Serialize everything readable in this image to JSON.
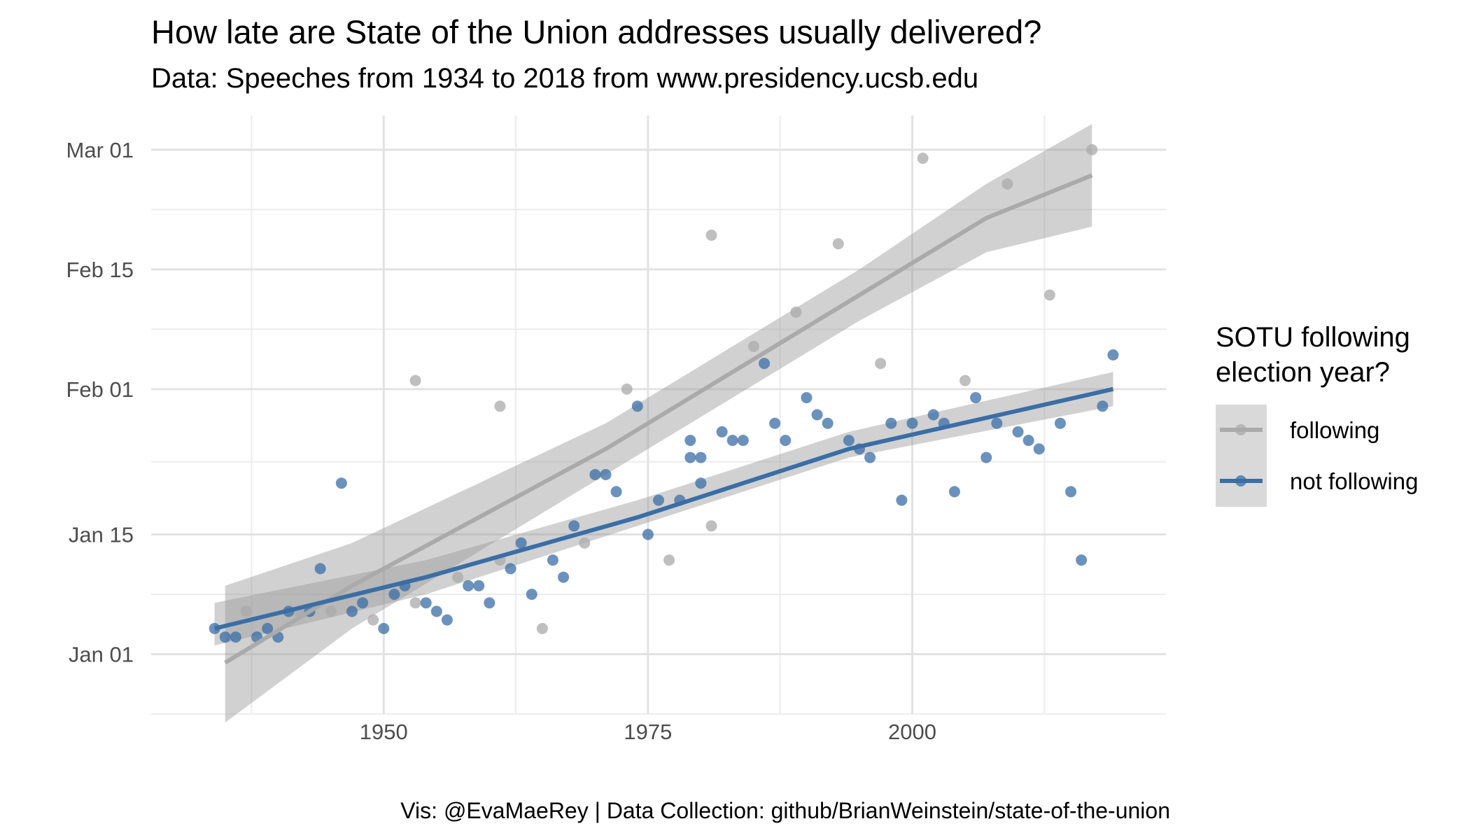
{
  "chart_data": {
    "type": "scatter",
    "title": "How late are State of the Union addresses usually delivered?",
    "subtitle": "Data: Speeches from 1934 to 2018 from www.presidency.ucsb.edu",
    "caption": "Vis: @EvaMaeRey | Data Collection: github/BrianWeinstein/state-of-the-union",
    "xlabel": "",
    "ylabel": "",
    "x_ticks": [
      1950,
      1975,
      2000
    ],
    "y_ticks": [
      "Jan 01",
      "Jan 15",
      "Feb 01",
      "Feb 15",
      "Mar 01"
    ],
    "y_tick_values": [
      1,
      15,
      32,
      46,
      60
    ],
    "xlim": [
      1928,
      2024
    ],
    "ylim": [
      -6,
      64
    ],
    "y_unit": "day of year",
    "grid": true,
    "legend_position": "right",
    "legend_title": "SOTU following election year?",
    "series": [
      {
        "name": "following",
        "color": "#aaaaaa",
        "points": [
          [
            1937,
            6
          ],
          [
            1942,
            6
          ],
          [
            1945,
            6
          ],
          [
            1949,
            5
          ],
          [
            1953,
            7
          ],
          [
            1953,
            33
          ],
          [
            1957,
            10
          ],
          [
            1961,
            12
          ],
          [
            1961,
            30
          ],
          [
            1965,
            4
          ],
          [
            1969,
            14
          ],
          [
            1973,
            32
          ],
          [
            1977,
            12
          ],
          [
            1981,
            16
          ],
          [
            1981,
            50
          ],
          [
            1985,
            37
          ],
          [
            1989,
            41
          ],
          [
            1993,
            49
          ],
          [
            1997,
            35
          ],
          [
            2001,
            59
          ],
          [
            2005,
            33
          ],
          [
            2009,
            56
          ],
          [
            2013,
            43
          ],
          [
            2017,
            60
          ]
        ],
        "trend": [
          [
            1935,
            0
          ],
          [
            1947,
            9
          ],
          [
            1959,
            17
          ],
          [
            1971,
            25
          ],
          [
            1983,
            34
          ],
          [
            1995,
            43
          ],
          [
            2007,
            52
          ],
          [
            2017,
            57
          ]
        ],
        "band_upper": [
          [
            1935,
            9
          ],
          [
            1947,
            14
          ],
          [
            1959,
            21
          ],
          [
            1971,
            28
          ],
          [
            1983,
            37
          ],
          [
            1995,
            46
          ],
          [
            2007,
            56
          ],
          [
            2017,
            63
          ]
        ],
        "band_lower": [
          [
            1935,
            -7
          ],
          [
            1947,
            4
          ],
          [
            1959,
            13
          ],
          [
            1971,
            22
          ],
          [
            1983,
            31
          ],
          [
            1995,
            40
          ],
          [
            2007,
            48
          ],
          [
            2017,
            51
          ]
        ]
      },
      {
        "name": "not following",
        "color": "#3a6ea5",
        "points": [
          [
            1934,
            4
          ],
          [
            1935,
            3
          ],
          [
            1936,
            3
          ],
          [
            1938,
            3
          ],
          [
            1939,
            4
          ],
          [
            1940,
            3
          ],
          [
            1941,
            6
          ],
          [
            1943,
            6
          ],
          [
            1944,
            11
          ],
          [
            1946,
            21
          ],
          [
            1947,
            6
          ],
          [
            1948,
            7
          ],
          [
            1950,
            4
          ],
          [
            1951,
            8
          ],
          [
            1952,
            9
          ],
          [
            1954,
            7
          ],
          [
            1955,
            6
          ],
          [
            1956,
            5
          ],
          [
            1958,
            9
          ],
          [
            1959,
            9
          ],
          [
            1960,
            7
          ],
          [
            1962,
            11
          ],
          [
            1963,
            14
          ],
          [
            1964,
            8
          ],
          [
            1966,
            12
          ],
          [
            1967,
            10
          ],
          [
            1968,
            16
          ],
          [
            1970,
            22
          ],
          [
            1971,
            22
          ],
          [
            1972,
            20
          ],
          [
            1974,
            30
          ],
          [
            1975,
            15
          ],
          [
            1976,
            19
          ],
          [
            1978,
            19
          ],
          [
            1979,
            24
          ],
          [
            1979,
            26
          ],
          [
            1980,
            21
          ],
          [
            1980,
            24
          ],
          [
            1982,
            27
          ],
          [
            1983,
            26
          ],
          [
            1984,
            26
          ],
          [
            1986,
            35
          ],
          [
            1987,
            28
          ],
          [
            1988,
            26
          ],
          [
            1990,
            31
          ],
          [
            1991,
            29
          ],
          [
            1992,
            28
          ],
          [
            1994,
            26
          ],
          [
            1995,
            25
          ],
          [
            1996,
            24
          ],
          [
            1998,
            28
          ],
          [
            1999,
            19
          ],
          [
            2000,
            28
          ],
          [
            2002,
            29
          ],
          [
            2003,
            28
          ],
          [
            2004,
            20
          ],
          [
            2006,
            31
          ],
          [
            2007,
            24
          ],
          [
            2008,
            28
          ],
          [
            2010,
            27
          ],
          [
            2011,
            26
          ],
          [
            2012,
            25
          ],
          [
            2014,
            28
          ],
          [
            2015,
            20
          ],
          [
            2016,
            12
          ],
          [
            2018,
            30
          ],
          [
            2019,
            36
          ]
        ],
        "trend": [
          [
            1934,
            4
          ],
          [
            1954,
            10
          ],
          [
            1974,
            17
          ],
          [
            1994,
            25
          ],
          [
            2019,
            32
          ]
        ],
        "band_upper": [
          [
            1934,
            7
          ],
          [
            1954,
            12
          ],
          [
            1974,
            19
          ],
          [
            1994,
            27
          ],
          [
            2019,
            34
          ]
        ],
        "band_lower": [
          [
            1934,
            2
          ],
          [
            1954,
            8
          ],
          [
            1974,
            16
          ],
          [
            1994,
            24
          ],
          [
            2019,
            30
          ]
        ]
      }
    ]
  }
}
